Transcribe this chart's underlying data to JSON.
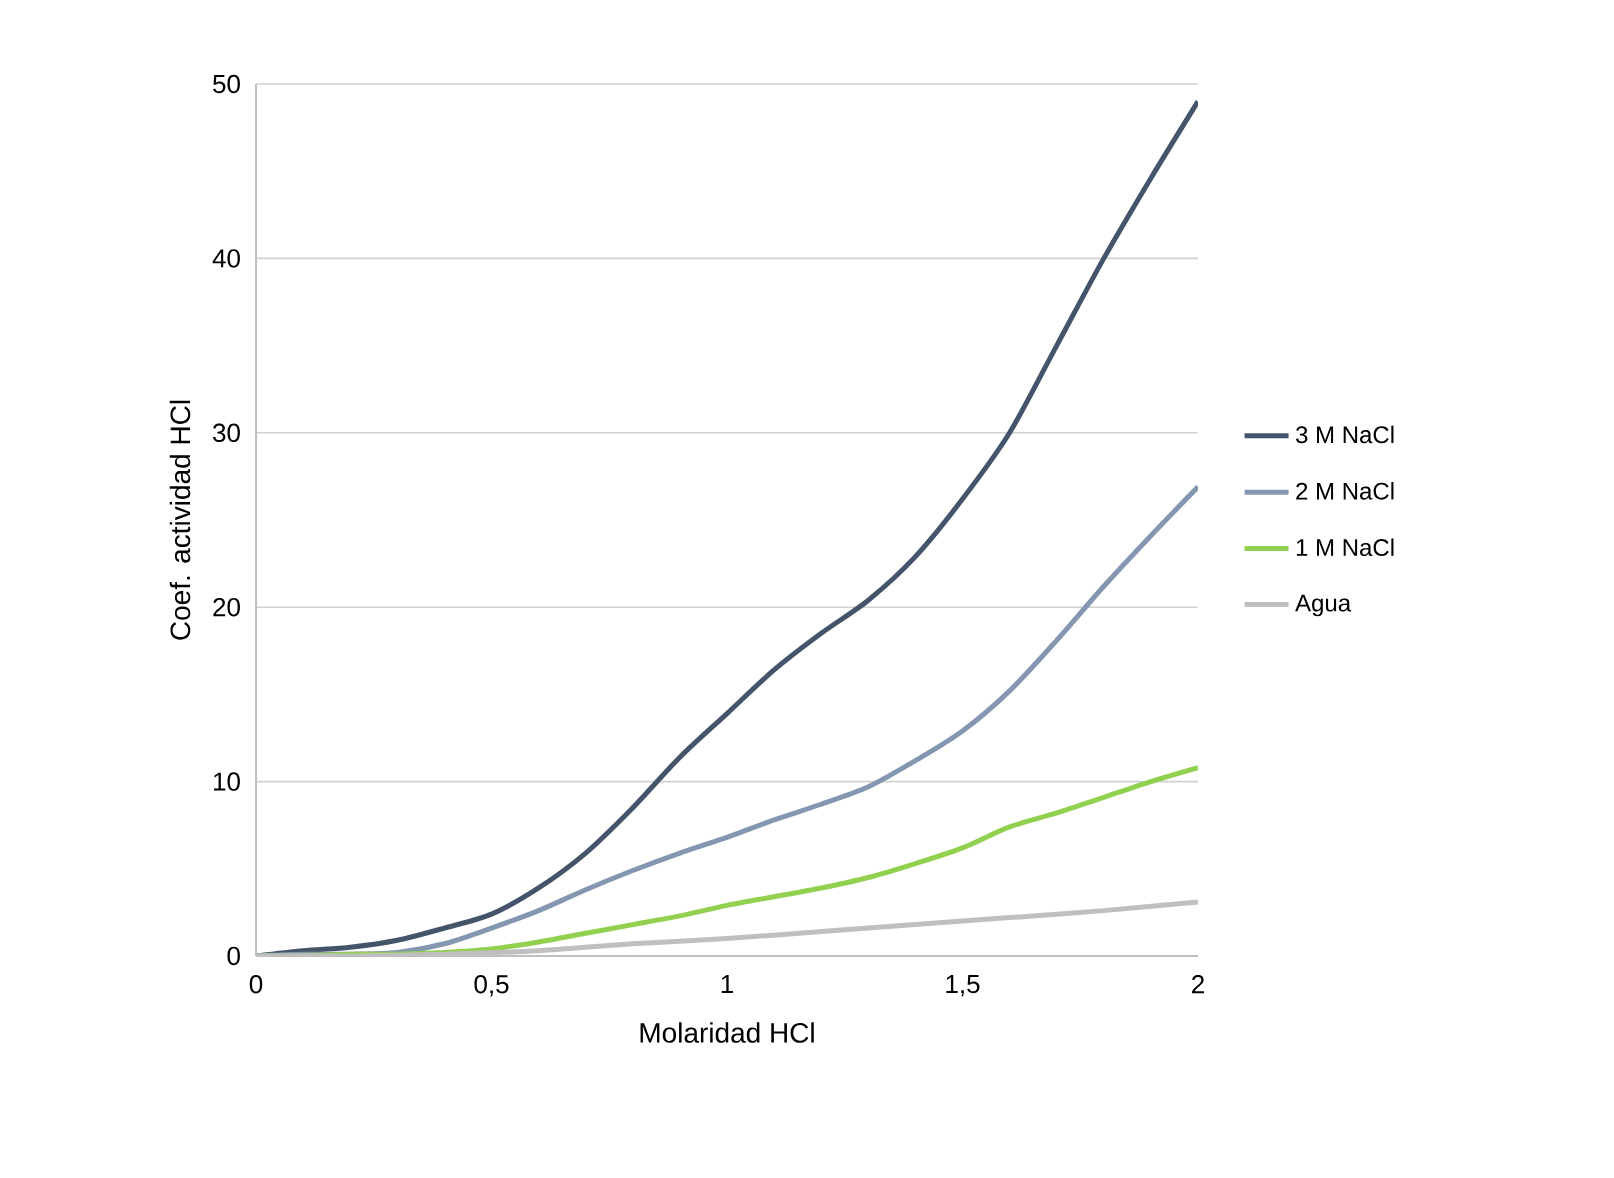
{
  "chart_data": {
    "type": "line",
    "xlabel": "Molaridad HCl",
    "ylabel": "Coef. actividad HCl",
    "xlim": [
      0,
      2
    ],
    "ylim": [
      0,
      50
    ],
    "xticks": [
      0,
      {
        "value": 0.5,
        "label": "0,5"
      },
      1,
      {
        "value": 1.5,
        "label": "1,5"
      },
      2
    ],
    "yticks": [
      0,
      10,
      20,
      30,
      40,
      50
    ],
    "grid": "y",
    "legend": "right",
    "marker": "none",
    "line_style": "solid",
    "series": [
      {
        "name": "3 M NaCl",
        "color": "#44546a",
        "x": [
          0,
          0.1,
          0.2,
          0.3,
          0.4,
          0.5,
          0.6,
          0.7,
          0.8,
          0.9,
          1.0,
          1.1,
          1.2,
          1.3,
          1.4,
          1.5,
          1.6,
          1.7,
          1.8,
          1.9,
          2.0
        ],
        "values": [
          0,
          0.3,
          0.5,
          0.9,
          1.6,
          2.4,
          3.9,
          5.9,
          8.5,
          11.4,
          13.9,
          16.4,
          18.5,
          20.4,
          22.9,
          26.2,
          30,
          35,
          40,
          44.6,
          49
        ]
      },
      {
        "name": "2 M NaCl",
        "color": "#8497b0",
        "x": [
          0,
          0.1,
          0.2,
          0.3,
          0.4,
          0.5,
          0.6,
          0.7,
          0.8,
          0.9,
          1.0,
          1.1,
          1.2,
          1.3,
          1.4,
          1.5,
          1.6,
          1.7,
          1.8,
          1.9,
          2.0
        ],
        "values": [
          0,
          0.1,
          0.1,
          0.2,
          0.7,
          1.6,
          2.6,
          3.8,
          4.9,
          5.9,
          6.8,
          7.8,
          8.7,
          9.7,
          11.2,
          12.9,
          15.2,
          18.1,
          21.2,
          24.1,
          26.9
        ]
      },
      {
        "name": "1 M NaCl",
        "color": "#92d050",
        "x": [
          0,
          0.1,
          0.2,
          0.3,
          0.4,
          0.5,
          0.6,
          0.7,
          0.8,
          0.9,
          1.0,
          1.1,
          1.2,
          1.3,
          1.4,
          1.5,
          1.6,
          1.7,
          1.8,
          1.9,
          2.0
        ],
        "values": [
          0,
          0,
          0.1,
          0.1,
          0.2,
          0.4,
          0.8,
          1.3,
          1.8,
          2.3,
          2.9,
          3.4,
          3.9,
          4.5,
          5.3,
          6.2,
          7.4,
          8.2,
          9.1,
          10.0,
          10.8
        ]
      },
      {
        "name": "Agua",
        "color": "#bfbfbf",
        "x": [
          0,
          0.2,
          0.4,
          0.6,
          0.8,
          1.0,
          1.2,
          1.4,
          1.6,
          1.8,
          2.0
        ],
        "values": [
          0,
          0,
          0.1,
          0.3,
          0.7,
          1.0,
          1.4,
          1.8,
          2.2,
          2.6,
          3.1
        ]
      }
    ]
  }
}
